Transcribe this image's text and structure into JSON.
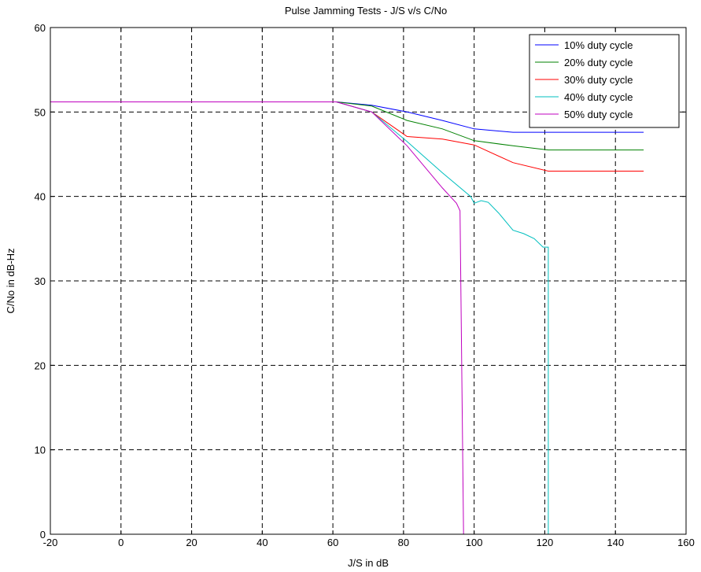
{
  "chart_data": {
    "type": "line",
    "title": "Pulse Jamming Tests - J/S v/s C/No",
    "xlabel": "J/S in dB",
    "ylabel": "C/No in dB-Hz",
    "xlim": [
      -20,
      160
    ],
    "ylim": [
      0,
      60
    ],
    "xticks": [
      -20,
      0,
      20,
      40,
      60,
      80,
      100,
      120,
      140,
      160
    ],
    "yticks": [
      0,
      10,
      20,
      30,
      40,
      50,
      60
    ],
    "grid": true,
    "legend_position": "top-right",
    "series": [
      {
        "name": "10% duty cycle",
        "color": "#0000ff",
        "points": [
          [
            -20,
            51.2
          ],
          [
            61,
            51.2
          ],
          [
            71,
            50.8
          ],
          [
            81,
            50.0
          ],
          [
            91,
            49.0
          ],
          [
            100,
            48.0
          ],
          [
            111,
            47.6
          ],
          [
            121,
            47.6
          ],
          [
            148,
            47.6
          ]
        ]
      },
      {
        "name": "20% duty cycle",
        "color": "#008000",
        "points": [
          [
            -20,
            51.2
          ],
          [
            61,
            51.2
          ],
          [
            71,
            50.7
          ],
          [
            81,
            49.0
          ],
          [
            91,
            48.0
          ],
          [
            100,
            46.6
          ],
          [
            111,
            46.0
          ],
          [
            121,
            45.5
          ],
          [
            148,
            45.5
          ]
        ]
      },
      {
        "name": "30% duty cycle",
        "color": "#ff0000",
        "points": [
          [
            -20,
            51.2
          ],
          [
            61,
            51.2
          ],
          [
            71,
            50.0
          ],
          [
            81,
            47.1
          ],
          [
            91,
            46.8
          ],
          [
            100,
            46.1
          ],
          [
            111,
            44.0
          ],
          [
            121,
            43.0
          ],
          [
            148,
            43.0
          ]
        ]
      },
      {
        "name": "40% duty cycle",
        "color": "#00bfbf",
        "points": [
          [
            -20,
            51.2
          ],
          [
            61,
            51.2
          ],
          [
            71,
            50.0
          ],
          [
            81,
            46.5
          ],
          [
            91,
            42.8
          ],
          [
            99,
            40.0
          ],
          [
            100,
            39.2
          ],
          [
            102,
            39.5
          ],
          [
            104,
            39.3
          ],
          [
            107,
            38.0
          ],
          [
            111,
            36.0
          ],
          [
            114,
            35.6
          ],
          [
            117,
            35.0
          ],
          [
            119.5,
            34.0
          ],
          [
            121,
            34.0
          ],
          [
            121,
            0
          ]
        ]
      },
      {
        "name": "50% duty cycle",
        "color": "#bf00bf",
        "points": [
          [
            -20,
            51.2
          ],
          [
            61,
            51.2
          ],
          [
            71,
            50.0
          ],
          [
            81,
            46.0
          ],
          [
            91,
            41.0
          ],
          [
            95,
            39.2
          ],
          [
            96,
            38.3
          ],
          [
            97,
            0
          ]
        ]
      }
    ]
  }
}
